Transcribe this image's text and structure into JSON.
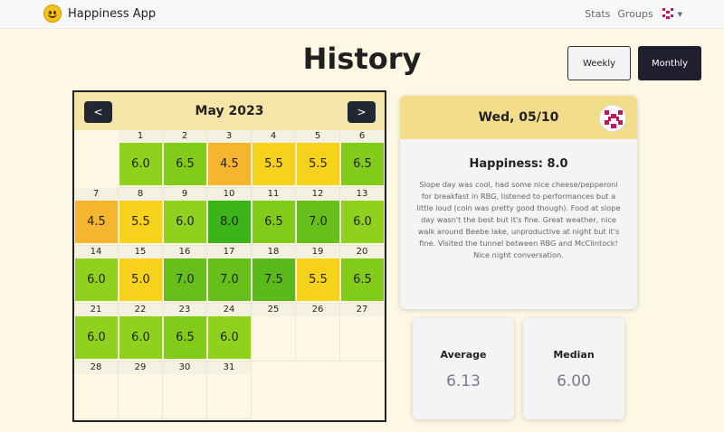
{
  "app": {
    "name": "Happiness App"
  },
  "nav": {
    "stats": "Stats",
    "groups": "Groups"
  },
  "page": {
    "title": "History"
  },
  "view_toggle": {
    "weekly": "Weekly",
    "monthly": "Monthly",
    "selected": "Monthly"
  },
  "calendar": {
    "title": "May 2023",
    "prev_label": "<",
    "next_label": ">",
    "days": [
      {
        "day": "1",
        "score": "6.0",
        "color": "#8fd11c"
      },
      {
        "day": "2",
        "score": "6.5",
        "color": "#80cc18"
      },
      {
        "day": "3",
        "score": "4.5",
        "color": "#f6b52f"
      },
      {
        "day": "4",
        "score": "5.5",
        "color": "#f7d21c"
      },
      {
        "day": "5",
        "score": "5.5",
        "color": "#f7d21c"
      },
      {
        "day": "6",
        "score": "6.5",
        "color": "#80cc18"
      },
      {
        "day": "7",
        "score": "4.5",
        "color": "#f6b52f"
      },
      {
        "day": "8",
        "score": "5.5",
        "color": "#f7d21c"
      },
      {
        "day": "9",
        "score": "6.0",
        "color": "#8fd11c"
      },
      {
        "day": "10",
        "score": "8.0",
        "color": "#3bb319"
      },
      {
        "day": "11",
        "score": "6.5",
        "color": "#80cc18"
      },
      {
        "day": "12",
        "score": "7.0",
        "color": "#66bf1a"
      },
      {
        "day": "13",
        "score": "6.0",
        "color": "#8fd11c"
      },
      {
        "day": "14",
        "score": "6.0",
        "color": "#8fd11c"
      },
      {
        "day": "15",
        "score": "5.0",
        "color": "#f7d21c"
      },
      {
        "day": "16",
        "score": "7.0",
        "color": "#66bf1a"
      },
      {
        "day": "17",
        "score": "7.0",
        "color": "#66bf1a"
      },
      {
        "day": "18",
        "score": "7.5",
        "color": "#5aba1a"
      },
      {
        "day": "19",
        "score": "5.5",
        "color": "#f7d21c"
      },
      {
        "day": "20",
        "score": "6.5",
        "color": "#80cc18"
      },
      {
        "day": "21",
        "score": "6.0",
        "color": "#8fd11c"
      },
      {
        "day": "22",
        "score": "6.0",
        "color": "#8fd11c"
      },
      {
        "day": "23",
        "score": "6.5",
        "color": "#80cc18"
      },
      {
        "day": "24",
        "score": "6.0",
        "color": "#8fd11c"
      },
      {
        "day": "25",
        "score": "",
        "color": ""
      },
      {
        "day": "26",
        "score": "",
        "color": ""
      },
      {
        "day": "27",
        "score": "",
        "color": ""
      },
      {
        "day": "28",
        "score": "",
        "color": ""
      },
      {
        "day": "29",
        "score": "",
        "color": ""
      },
      {
        "day": "30",
        "score": "",
        "color": ""
      },
      {
        "day": "31",
        "score": "",
        "color": ""
      }
    ]
  },
  "detail": {
    "date": "Wed, 05/10",
    "happiness": "Happiness: 8.0",
    "note": "Slope day was cool, had some nice cheese/pepperoni for breakfast in RBG, listened to performances but a little loud (coin was pretty good though). Food at slope day wasn't the best but it's fine. Great weather, nice walk around Beebe lake, unproductive at night but it's fine. Visited the tunnel between RBG and McClintock! Nice night conversation."
  },
  "stats": {
    "average_label": "Average",
    "average_value": "6.13",
    "median_label": "Median",
    "median_value": "6.00"
  }
}
